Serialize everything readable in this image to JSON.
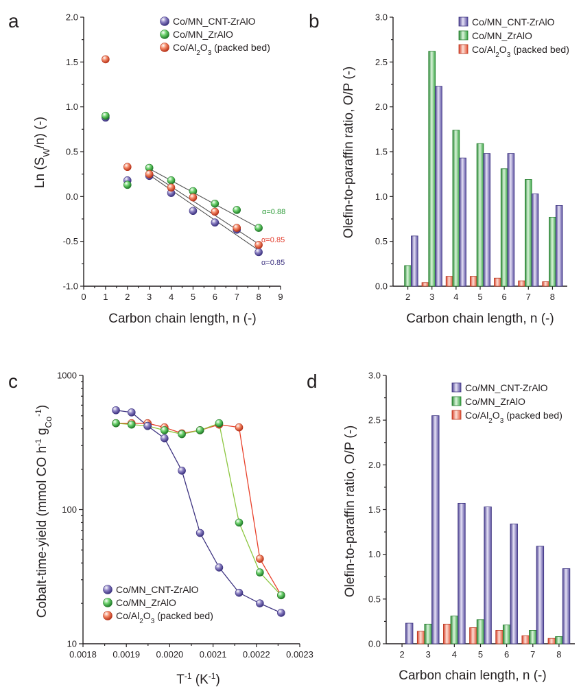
{
  "colors": {
    "cnt": "#6b5ea8",
    "zr": "#4cb84c",
    "al": "#ee5c3f",
    "fit": "#4d4d4d"
  },
  "chart_data": [
    {
      "panel": "a",
      "type": "scatter",
      "xlabel": "Carbon chain length, n (-)",
      "ylabel": "Ln (S_W/n) (-)",
      "xlim": [
        0,
        9
      ],
      "ylim": [
        -1.0,
        2.0
      ],
      "xticks": [
        "0",
        "1",
        "2",
        "3",
        "4",
        "5",
        "6",
        "7",
        "8",
        "9"
      ],
      "yticks": [
        "-1.0",
        "-0.5",
        "0.0",
        "0.5",
        "1.0",
        "1.5",
        "2.0"
      ],
      "legend_position": "top-right",
      "series": [
        {
          "name": "Co/MN_CNT-ZrAlO",
          "color_key": "cnt",
          "x": [
            1,
            2,
            3,
            4,
            5,
            6,
            7,
            8
          ],
          "y": [
            0.88,
            0.18,
            0.23,
            0.04,
            -0.16,
            -0.29,
            -0.37,
            -0.62
          ],
          "fit": {
            "x": [
              3,
              8
            ],
            "y": [
              0.24,
              -0.6
            ],
            "alpha": "α=0.85"
          }
        },
        {
          "name": "Co/MN_ZrAlO",
          "color_key": "zr",
          "x": [
            1,
            2,
            3,
            4,
            5,
            6,
            7,
            8
          ],
          "y": [
            0.9,
            0.13,
            0.32,
            0.18,
            0.06,
            -0.08,
            -0.15,
            -0.35
          ],
          "fit": {
            "x": [
              3,
              8
            ],
            "y": [
              0.31,
              -0.35
            ],
            "alpha": "α=0.88"
          }
        },
        {
          "name": "Co/Al2O3 (packed bed)",
          "color_key": "al",
          "x": [
            1,
            2,
            3,
            4,
            5,
            6,
            7,
            8
          ],
          "y": [
            1.53,
            0.33,
            0.25,
            0.1,
            -0.01,
            -0.17,
            -0.35,
            -0.54
          ],
          "fit": {
            "x": [
              3,
              8
            ],
            "y": [
              0.27,
              -0.53
            ],
            "alpha": "α=0.85"
          }
        }
      ]
    },
    {
      "panel": "b",
      "type": "bar",
      "xlabel": "Carbon chain length, n (-)",
      "ylabel": "Olefin-to-paraffin ratio, O/P (-)",
      "categories": [
        "2",
        "3",
        "4",
        "5",
        "6",
        "7",
        "8"
      ],
      "ylim": [
        0,
        3.0
      ],
      "yticks": [
        "0.0",
        "0.5",
        "1.0",
        "1.5",
        "2.0",
        "2.5",
        "3.0"
      ],
      "legend_position": "top-right",
      "series": [
        {
          "name": "Co/Al2O3 (packed bed)",
          "color_key": "al",
          "values": [
            0.0,
            0.04,
            0.11,
            0.11,
            0.09,
            0.06,
            0.05
          ]
        },
        {
          "name": "Co/MN_ZrAlO",
          "color_key": "zr",
          "values": [
            0.23,
            2.62,
            1.74,
            1.59,
            1.31,
            1.19,
            0.77
          ]
        },
        {
          "name": "Co/MN_CNT-ZrAlO",
          "color_key": "cnt",
          "values": [
            0.56,
            2.23,
            1.43,
            1.48,
            1.48,
            1.03,
            0.9
          ]
        }
      ]
    },
    {
      "panel": "c",
      "type": "line",
      "xlabel": "T^-1 (K^-1)",
      "ylabel": "Cobalt-time-yield (mmol CO h^-1 g_Co^-1)",
      "xlim": [
        0.0018,
        0.0023
      ],
      "ylim": [
        10,
        1000
      ],
      "yscale": "log",
      "xticks": [
        "0.0018",
        "0.0019",
        "0.0020",
        "0.0021",
        "0.0022",
        "0.0023"
      ],
      "yticks": [
        "10",
        "100",
        "1000"
      ],
      "legend_position": "bottom-left",
      "series": [
        {
          "name": "Co/MN_CNT-ZrAlO",
          "color_key": "cnt",
          "x": [
            0.001876,
            0.001912,
            0.001949,
            0.001988,
            0.002028,
            0.00207,
            0.002114,
            0.00216,
            0.002208,
            0.002257
          ],
          "y": [
            550,
            530,
            420,
            340,
            195,
            67,
            37,
            24,
            20,
            17
          ]
        },
        {
          "name": "Co/MN_ZrAlO",
          "color_key": "zr",
          "x": [
            0.001876,
            0.001912,
            0.001949,
            0.001988,
            0.002028,
            0.00207,
            0.002114,
            0.00216,
            0.002208,
            0.002257
          ],
          "y": [
            440,
            430,
            420,
            390,
            365,
            390,
            440,
            80,
            34,
            23
          ]
        },
        {
          "name": "Co/Al2O3 (packed bed)",
          "color_key": "al",
          "x": [
            0.001876,
            0.001912,
            0.001949,
            0.001988,
            0.002028,
            0.00207,
            0.002114,
            0.00216,
            0.002208,
            0.002257
          ],
          "y": [
            440,
            440,
            440,
            410,
            370,
            390,
            430,
            410,
            43,
            23
          ]
        }
      ]
    },
    {
      "panel": "d",
      "type": "bar",
      "xlabel": "Carbon chain length, n (-)",
      "ylabel": "Olefin-to-paraffin ratio, O/P (-)",
      "categories": [
        "2",
        "3",
        "4",
        "5",
        "6",
        "7",
        "8"
      ],
      "ylim": [
        0,
        3.0
      ],
      "yticks": [
        "0.0",
        "0.5",
        "1.0",
        "1.5",
        "2.0",
        "2.5",
        "3.0"
      ],
      "legend_position": "top-right",
      "series": [
        {
          "name": "Co/Al2O3 (packed bed)",
          "color_key": "al",
          "values": [
            0.0,
            0.14,
            0.22,
            0.18,
            0.15,
            0.09,
            0.06
          ]
        },
        {
          "name": "Co/MN_ZrAlO",
          "color_key": "zr",
          "values": [
            0.0,
            0.22,
            0.31,
            0.27,
            0.21,
            0.15,
            0.08
          ]
        },
        {
          "name": "Co/MN_CNT-ZrAlO",
          "color_key": "cnt",
          "values": [
            0.23,
            2.55,
            1.57,
            1.53,
            1.34,
            1.09,
            0.84
          ]
        }
      ]
    }
  ],
  "panels": {
    "a": {
      "letter": "a",
      "ylabel": {
        "main": "Ln (S",
        "sub": "W",
        "tail": "/n) (-)"
      },
      "xlabel": "Carbon chain length, n (-)",
      "legend": [
        {
          "text": "Co/MN_CNT-ZrAlO",
          "color_key": "cnt"
        },
        {
          "text": "Co/MN_ZrAlO",
          "color_key": "zr"
        },
        {
          "pre": "Co/Al",
          "sub1": "2",
          "mid": "O",
          "sub2": "3",
          "post": " (packed bed)",
          "color_key": "al"
        }
      ]
    },
    "b": {
      "letter": "b",
      "ylabel": "Olefin-to-paraffin ratio, O/P (-)",
      "xlabel": "Carbon chain length, n (-)",
      "legend": [
        {
          "text": "Co/MN_CNT-ZrAlO",
          "color_key": "cnt"
        },
        {
          "text": "Co/MN_ZrAlO",
          "color_key": "zr"
        },
        {
          "pre": "Co/Al",
          "sub1": "2",
          "mid": "O",
          "sub2": "3",
          "post": " (packed bed)",
          "color_key": "al"
        }
      ]
    },
    "c": {
      "letter": "c",
      "ylabel": {
        "main": "Cobalt-time-yield (mmol CO h",
        "sup1": "-1",
        "mid": " g",
        "sub": "Co",
        "sup2": "-1",
        "tail": ")"
      },
      "xlabel": {
        "main": "T",
        "sup1": "-1",
        "mid": " (K",
        "sup2": "-1",
        "tail": ")"
      },
      "legend": [
        {
          "text": "Co/MN_CNT-ZrAlO",
          "color_key": "cnt"
        },
        {
          "text": "Co/MN_ZrAlO",
          "color_key": "zr"
        },
        {
          "pre": "Co/Al",
          "sub1": "2",
          "mid": "O",
          "sub2": "3",
          "post": " (packed bed)",
          "color_key": "al"
        }
      ]
    },
    "d": {
      "letter": "d",
      "ylabel": "Olefin-to-paraffin ratio, O/P (-)",
      "xlabel": "Carbon chain length, n (-)",
      "legend": [
        {
          "text": "Co/MN_CNT-ZrAlO",
          "color_key": "cnt"
        },
        {
          "text": "Co/MN_ZrAlO",
          "color_key": "zr"
        },
        {
          "pre": "Co/Al",
          "sub1": "2",
          "mid": "O",
          "sub2": "3",
          "post": " (packed bed)",
          "color_key": "al"
        }
      ]
    }
  }
}
